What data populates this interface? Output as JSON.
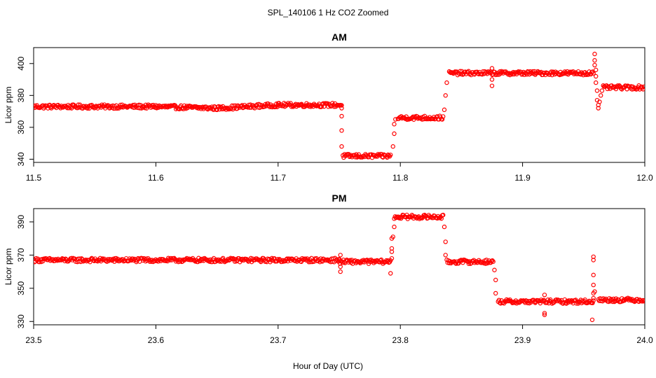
{
  "title": "SPL_140106  1 Hz CO2 Zoomed",
  "xlabel": "Hour of Day (UTC)",
  "marker_color": "#ff0000",
  "chart_data": [
    {
      "type": "scatter",
      "title": "AM",
      "ylabel": "Licor ppm",
      "xlim": [
        11.5,
        12.0
      ],
      "ylim": [
        338,
        410
      ],
      "x_ticks": [
        11.5,
        11.6,
        11.7,
        11.8,
        11.9,
        12.0
      ],
      "x_tick_labels": [
        "11.5",
        "11.6",
        "11.7",
        "11.8",
        "11.9",
        "12.0"
      ],
      "y_ticks": [
        340,
        360,
        380,
        400
      ],
      "y_tick_labels": [
        "340",
        "360",
        "380",
        "400"
      ],
      "segments": [
        {
          "x": [
            11.5,
            11.6
          ],
          "y": [
            373,
            373
          ]
        },
        {
          "x": [
            11.6,
            11.65
          ],
          "y": [
            373,
            372
          ]
        },
        {
          "x": [
            11.65,
            11.7
          ],
          "y": [
            372,
            374
          ]
        },
        {
          "x": [
            11.7,
            11.752
          ],
          "y": [
            374,
            374
          ]
        },
        {
          "x": [
            11.753,
            11.792
          ],
          "y": [
            342,
            342
          ]
        },
        {
          "x": [
            11.798,
            11.835
          ],
          "y": [
            366,
            366
          ]
        },
        {
          "x": [
            11.84,
            11.958
          ],
          "y": [
            394,
            394
          ]
        },
        {
          "x": [
            11.966,
            12.0
          ],
          "y": [
            385,
            385
          ]
        }
      ],
      "points": [
        {
          "x": 11.752,
          "y": 372
        },
        {
          "x": 11.752,
          "y": 367
        },
        {
          "x": 11.752,
          "y": 358
        },
        {
          "x": 11.752,
          "y": 348
        },
        {
          "x": 11.794,
          "y": 348
        },
        {
          "x": 11.795,
          "y": 356
        },
        {
          "x": 11.795,
          "y": 362
        },
        {
          "x": 11.796,
          "y": 365
        },
        {
          "x": 11.836,
          "y": 371
        },
        {
          "x": 11.837,
          "y": 380
        },
        {
          "x": 11.838,
          "y": 388
        },
        {
          "x": 11.875,
          "y": 397
        },
        {
          "x": 11.875,
          "y": 390
        },
        {
          "x": 11.875,
          "y": 386
        },
        {
          "x": 11.959,
          "y": 406
        },
        {
          "x": 11.959,
          "y": 402
        },
        {
          "x": 11.959,
          "y": 399
        },
        {
          "x": 11.96,
          "y": 396
        },
        {
          "x": 11.96,
          "y": 392
        },
        {
          "x": 11.96,
          "y": 388
        },
        {
          "x": 11.961,
          "y": 383
        },
        {
          "x": 11.961,
          "y": 377
        },
        {
          "x": 11.962,
          "y": 374
        },
        {
          "x": 11.962,
          "y": 372
        },
        {
          "x": 11.963,
          "y": 376
        },
        {
          "x": 11.964,
          "y": 380
        },
        {
          "x": 11.965,
          "y": 383
        }
      ]
    },
    {
      "type": "scatter",
      "title": "PM",
      "ylabel": "Licor ppm",
      "xlim": [
        23.5,
        24.0
      ],
      "ylim": [
        328,
        398
      ],
      "x_ticks": [
        23.5,
        23.6,
        23.7,
        23.8,
        23.9,
        24.0
      ],
      "x_tick_labels": [
        "23.5",
        "23.6",
        "23.7",
        "23.8",
        "23.9",
        "24.0"
      ],
      "y_ticks": [
        330,
        350,
        370,
        390
      ],
      "y_tick_labels": [
        "330",
        "350",
        "370",
        "390"
      ],
      "segments": [
        {
          "x": [
            23.5,
            23.75
          ],
          "y": [
            367,
            367
          ]
        },
        {
          "x": [
            23.75,
            23.792
          ],
          "y": [
            366,
            366
          ]
        },
        {
          "x": [
            23.795,
            23.835
          ],
          "y": [
            393,
            393
          ]
        },
        {
          "x": [
            23.838,
            23.876
          ],
          "y": [
            366,
            366
          ]
        },
        {
          "x": [
            23.88,
            23.958
          ],
          "y": [
            342,
            342
          ]
        },
        {
          "x": [
            23.962,
            24.0
          ],
          "y": [
            343,
            343
          ]
        }
      ],
      "points": [
        {
          "x": 23.751,
          "y": 370
        },
        {
          "x": 23.751,
          "y": 363
        },
        {
          "x": 23.751,
          "y": 360
        },
        {
          "x": 23.792,
          "y": 359
        },
        {
          "x": 23.793,
          "y": 368
        },
        {
          "x": 23.793,
          "y": 372
        },
        {
          "x": 23.793,
          "y": 374
        },
        {
          "x": 23.793,
          "y": 380
        },
        {
          "x": 23.794,
          "y": 381
        },
        {
          "x": 23.795,
          "y": 387
        },
        {
          "x": 23.836,
          "y": 387
        },
        {
          "x": 23.837,
          "y": 378
        },
        {
          "x": 23.837,
          "y": 370
        },
        {
          "x": 23.877,
          "y": 361
        },
        {
          "x": 23.878,
          "y": 355
        },
        {
          "x": 23.878,
          "y": 347
        },
        {
          "x": 23.918,
          "y": 346
        },
        {
          "x": 23.918,
          "y": 335
        },
        {
          "x": 23.918,
          "y": 334
        },
        {
          "x": 23.958,
          "y": 369
        },
        {
          "x": 23.958,
          "y": 367
        },
        {
          "x": 23.958,
          "y": 358
        },
        {
          "x": 23.958,
          "y": 352
        },
        {
          "x": 23.958,
          "y": 347
        },
        {
          "x": 23.958,
          "y": 344
        },
        {
          "x": 23.957,
          "y": 331
        },
        {
          "x": 23.959,
          "y": 348
        }
      ]
    }
  ]
}
